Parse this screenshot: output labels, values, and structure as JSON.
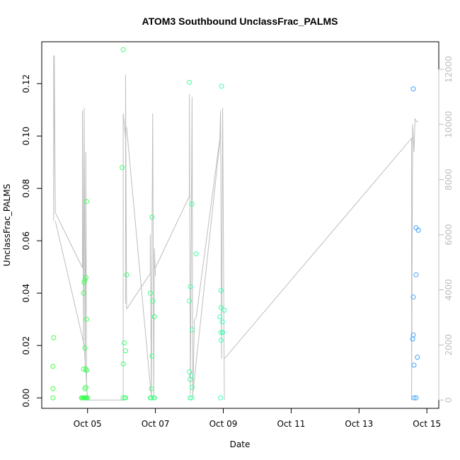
{
  "chart_data": {
    "type": "scatter",
    "title": "ATOM3 Southbound UnclassFrac_PALMS",
    "xlabel": "Date",
    "ylabel": "UnclassFrac_PALMS",
    "x_ticks": [
      "Oct 05",
      "Oct 07",
      "Oct 09",
      "Oct 11",
      "Oct 13",
      "Oct 15"
    ],
    "x_tick_days": [
      5,
      7,
      9,
      11,
      13,
      15
    ],
    "xlim_days": [
      3.65,
      15.35
    ],
    "ylim": [
      -0.004,
      0.136
    ],
    "y_ticks": [
      "0.00",
      "0.02",
      "0.04",
      "0.06",
      "0.08",
      "0.10",
      "0.12"
    ],
    "y_tick_values": [
      0.0,
      0.02,
      0.04,
      0.06,
      0.08,
      0.1,
      0.12
    ],
    "y2_ticks": [
      "0",
      "2000",
      "4000",
      "6000",
      "8000",
      "10000",
      "12000"
    ],
    "y2_tick_values": [
      0,
      2000,
      4000,
      6000,
      8000,
      10000,
      12000
    ],
    "y2lim": [
      -300,
      13000
    ],
    "grid": false,
    "colors": {
      "series_start": "#40ff40",
      "series_mid": "#40ffb0",
      "series_end": "#40a0ff",
      "altitude_line": "#bebebe",
      "right_axis": "#bdbdbd"
    },
    "series": [
      {
        "points": [
          [
            4.0,
            0.023
          ],
          [
            3.98,
            0.012
          ],
          [
            3.98,
            0.0035
          ],
          [
            3.98,
            0.0
          ],
          [
            4.82,
            0.0
          ],
          [
            4.85,
            0.0
          ],
          [
            4.88,
            0.0
          ],
          [
            4.9,
            0.0
          ],
          [
            4.92,
            0.0
          ],
          [
            4.95,
            0.0
          ],
          [
            4.97,
            0.0
          ],
          [
            5.0,
            0.0
          ],
          [
            4.88,
            0.011
          ],
          [
            4.92,
            0.0035
          ],
          [
            4.95,
            0.004
          ],
          [
            4.95,
            0.011
          ],
          [
            4.97,
            0.0105
          ],
          [
            4.92,
            0.019
          ],
          [
            4.97,
            0.03
          ],
          [
            4.88,
            0.04
          ],
          [
            4.9,
            0.044
          ],
          [
            4.92,
            0.045
          ],
          [
            4.95,
            0.046
          ],
          [
            4.97,
            0.075
          ],
          [
            6.05,
            0.133
          ],
          [
            6.02,
            0.088
          ],
          [
            6.15,
            0.047
          ],
          [
            6.08,
            0.021
          ],
          [
            6.12,
            0.018
          ],
          [
            6.05,
            0.013
          ],
          [
            6.05,
            0.0
          ],
          [
            6.1,
            0.0
          ],
          [
            6.12,
            0.0
          ],
          [
            6.85,
            0.0
          ],
          [
            6.88,
            0.0
          ],
          [
            6.95,
            0.0
          ],
          [
            6.97,
            0.0
          ],
          [
            6.88,
            0.0035
          ],
          [
            6.9,
            0.016
          ],
          [
            6.85,
            0.04
          ],
          [
            6.9,
            0.069
          ],
          [
            6.92,
            0.037
          ],
          [
            6.97,
            0.031
          ],
          [
            8.0,
            0.1205
          ],
          [
            8.08,
            0.074
          ],
          [
            8.03,
            0.0425
          ],
          [
            8.0,
            0.037
          ],
          [
            8.08,
            0.026
          ],
          [
            8.2,
            0.055
          ],
          [
            8.0,
            0.01
          ],
          [
            8.05,
            0.0085
          ],
          [
            8.02,
            0.007
          ],
          [
            8.08,
            0.004
          ],
          [
            8.02,
            0.0
          ],
          [
            8.07,
            0.0
          ],
          [
            8.95,
            0.119
          ],
          [
            8.93,
            0.041
          ],
          [
            8.93,
            0.0345
          ],
          [
            9.03,
            0.0335
          ],
          [
            8.9,
            0.031
          ],
          [
            8.97,
            0.029
          ],
          [
            8.93,
            0.025
          ],
          [
            8.98,
            0.025
          ],
          [
            8.93,
            0.022
          ],
          [
            8.92,
            0.0
          ],
          [
            14.6,
            0.118
          ],
          [
            14.68,
            0.065
          ],
          [
            14.75,
            0.064
          ],
          [
            14.68,
            0.047
          ],
          [
            14.6,
            0.0385
          ],
          [
            14.6,
            0.024
          ],
          [
            14.58,
            0.0225
          ],
          [
            14.72,
            0.0155
          ],
          [
            14.62,
            0.0125
          ],
          [
            14.62,
            0.0
          ],
          [
            14.68,
            0.0
          ]
        ]
      }
    ],
    "altitude_line": {
      "segments": [
        [
          [
            4.0,
            12500
          ],
          [
            4.0,
            6500
          ],
          [
            4.02,
            12500
          ],
          [
            4.05,
            6800
          ]
        ],
        [
          [
            4.05,
            6800
          ],
          [
            4.85,
            4800
          ],
          [
            4.85,
            10500
          ],
          [
            4.88,
            2000
          ],
          [
            4.9,
            10600
          ],
          [
            4.93,
            1000
          ],
          [
            4.95,
            9000
          ],
          [
            4.97,
            500
          ]
        ],
        [
          [
            4.05,
            6500
          ],
          [
            4.9,
            2000
          ],
          [
            5.0,
            0
          ]
        ],
        [
          [
            4.97,
            500
          ],
          [
            5.0,
            0
          ],
          [
            6.05,
            0
          ],
          [
            6.05,
            10400
          ],
          [
            6.12,
            9500
          ],
          [
            6.12,
            3500
          ],
          [
            6.12,
            11800
          ],
          [
            6.15,
            3300
          ]
        ],
        [
          [
            6.15,
            3300
          ],
          [
            6.85,
            4600
          ],
          [
            6.85,
            6000
          ],
          [
            6.88,
            0
          ],
          [
            6.9,
            6000
          ],
          [
            6.92,
            10400
          ],
          [
            6.95,
            0
          ],
          [
            6.97,
            5500
          ],
          [
            7.0,
            4500
          ]
        ],
        [
          [
            6.15,
            9900
          ],
          [
            6.88,
            100
          ]
        ],
        [
          [
            7.0,
            4800
          ],
          [
            8.0,
            7400
          ],
          [
            8.0,
            11100
          ],
          [
            8.03,
            200
          ],
          [
            8.08,
            11000
          ],
          [
            8.1,
            100
          ],
          [
            8.15,
            2900
          ],
          [
            8.2,
            3000
          ]
        ],
        [
          [
            8.2,
            3000
          ],
          [
            8.9,
            9500
          ],
          [
            8.92,
            10500
          ],
          [
            8.95,
            1500
          ],
          [
            8.98,
            10600
          ],
          [
            9.03,
            0
          ]
        ],
        [
          [
            8.1,
            200
          ],
          [
            8.9,
            9400
          ]
        ],
        [
          [
            9.03,
            1500
          ],
          [
            14.55,
            9500
          ],
          [
            14.55,
            0
          ],
          [
            14.58,
            10000
          ],
          [
            14.62,
            9000
          ],
          [
            14.65,
            10200
          ],
          [
            14.7,
            10100
          ],
          [
            14.75,
            10100
          ]
        ]
      ]
    }
  }
}
